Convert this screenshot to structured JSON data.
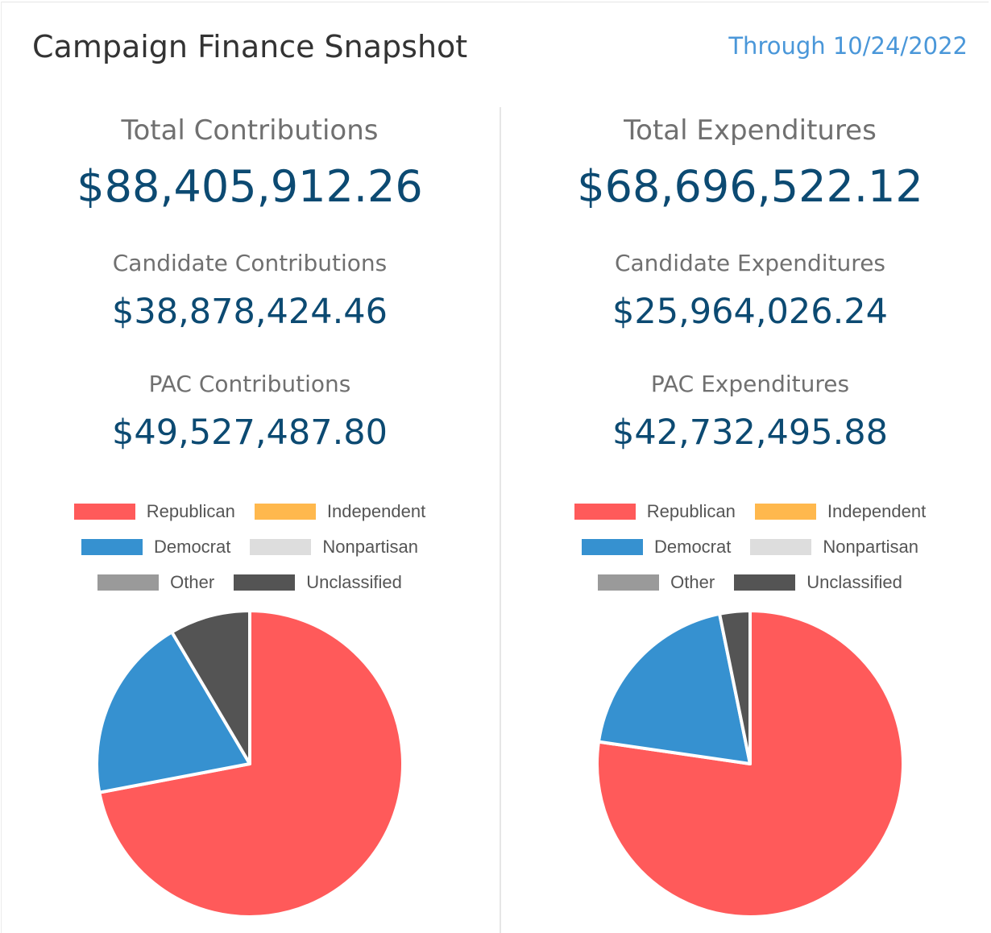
{
  "header": {
    "title": "Campaign Finance Snapshot",
    "through": "Through 10/24/2022"
  },
  "colors": {
    "Republican": "#ff5a5a",
    "Independent": "#ffb84d",
    "Democrat": "#3691d0",
    "Nonpartisan": "#dddddd",
    "Other": "#9a9a9a",
    "Unclassified": "#545454",
    "value_text": "#0c4a72",
    "label_text": "#707070",
    "date_text": "#4a97d9"
  },
  "legend_labels": [
    "Republican",
    "Independent",
    "Democrat",
    "Nonpartisan",
    "Other",
    "Unclassified"
  ],
  "contributions": {
    "total_label": "Total Contributions",
    "total_value": "$88,405,912.26",
    "candidate_label": "Candidate Contributions",
    "candidate_value": "$38,878,424.46",
    "pac_label": "PAC Contributions",
    "pac_value": "$49,527,487.80"
  },
  "expenditures": {
    "total_label": "Total Expenditures",
    "total_value": "$68,696,522.12",
    "candidate_label": "Candidate Expenditures",
    "candidate_value": "$25,964,026.24",
    "pac_label": "PAC Expenditures",
    "pac_value": "$42,732,495.88"
  },
  "chart_data": [
    {
      "type": "pie",
      "categories": [
        "Republican",
        "Independent",
        "Democrat",
        "Nonpartisan",
        "Other",
        "Unclassified"
      ],
      "values": [
        72.0,
        0,
        19.5,
        0,
        0,
        8.5
      ],
      "legend": "top"
    },
    {
      "type": "pie",
      "categories": [
        "Republican",
        "Independent",
        "Democrat",
        "Nonpartisan",
        "Other",
        "Unclassified"
      ],
      "values": [
        77.3,
        0,
        19.5,
        0,
        0,
        3.2
      ],
      "legend": "top"
    }
  ]
}
